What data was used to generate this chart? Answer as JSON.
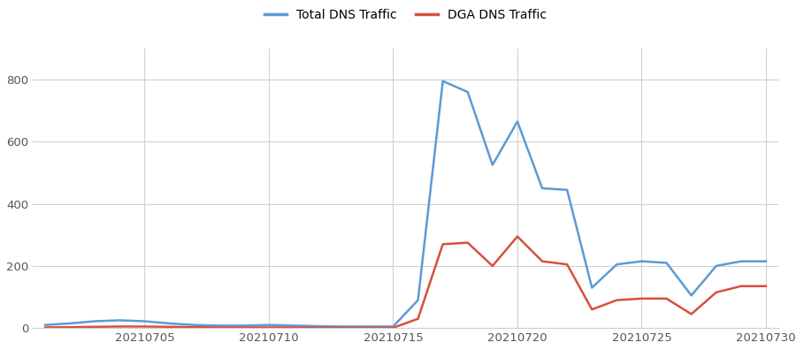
{
  "legend_labels": [
    "Total DNS Traffic",
    "DGA DNS Traffic"
  ],
  "total_color": "#5b9bd5",
  "dga_color": "#d94f3d",
  "line_width": 1.8,
  "background_color": "#ffffff",
  "grid_color": "#d0d0d0",
  "x_tick_labels": [
    "20210705",
    "20210710",
    "20210715",
    "20210720",
    "20210725",
    "20210730"
  ],
  "x_tick_days": [
    4,
    9,
    14,
    19,
    24,
    29
  ],
  "total_dns_y": [
    10,
    15,
    22,
    25,
    22,
    15,
    10,
    8,
    8,
    10,
    8,
    6,
    5,
    5,
    5,
    90,
    795,
    760,
    525,
    665,
    450,
    445,
    130,
    205,
    215,
    210,
    105,
    200,
    215,
    215
  ],
  "dga_dns_y": [
    2,
    3,
    4,
    5,
    5,
    4,
    3,
    2,
    2,
    2,
    2,
    1,
    1,
    1,
    1,
    30,
    270,
    275,
    200,
    295,
    215,
    205,
    60,
    90,
    95,
    95,
    45,
    115,
    135,
    135
  ],
  "ylim": [
    0,
    900
  ],
  "yticks": [
    0,
    200,
    400,
    600,
    800
  ],
  "figsize": [
    9.09,
    3.96
  ],
  "dpi": 100
}
